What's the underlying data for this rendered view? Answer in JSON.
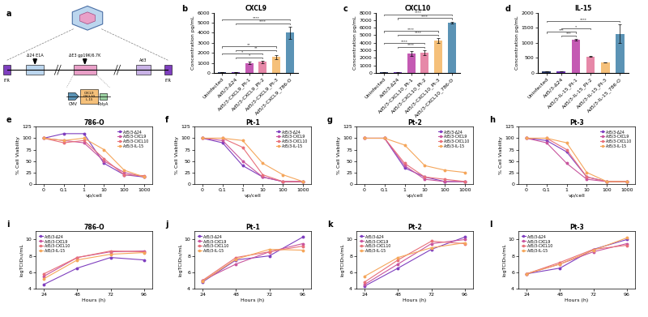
{
  "diagram": {
    "panel": "a",
    "labels": {
      "itr": "ITR",
      "e1a": "Δ24 E1A",
      "e3": "ΔE3 gp19K/6.7K",
      "fiber": "Ad3",
      "promoter": "CMV",
      "transgenes": [
        "CXCL9",
        "CXCL10",
        "IL-15"
      ],
      "polya": "PolyA"
    }
  },
  "chart_data": [
    {
      "panel": "b",
      "type": "bar",
      "title": "CXCL9",
      "y_label": "Concentration pg/mL",
      "categories": [
        "Uninfected",
        "Ad5/3-Δ24",
        "Ad5/3-CXCL9_Pt-1",
        "Ad5/3-CXCL9_Pt-2",
        "Ad5/3-CXCL9_Pt-3",
        "Ad5/3-CXCL9_786-O"
      ],
      "values": [
        50,
        50,
        1000,
        1100,
        1600,
        4000
      ],
      "errors": [
        10,
        10,
        100,
        100,
        200,
        600
      ],
      "colors": [
        "#2b3a67",
        "#6a2fb0",
        "#c45ab3",
        "#e688a8",
        "#f5c07a",
        "#5b93b5"
      ],
      "ylim": [
        0,
        6000
      ],
      "yticks": [
        0,
        1000,
        2000,
        3000,
        4000,
        5000,
        6000
      ],
      "annotations": [
        {
          "pair": [
            "Ad5/3-Δ24",
            "Ad5/3-CXCL9_Pt-2"
          ],
          "text": "*"
        },
        {
          "pair": [
            "Uninfected",
            "Ad5/3-CXCL9_Pt-2"
          ],
          "text": "*"
        },
        {
          "pair": [
            "Ad5/3-Δ24",
            "Ad5/3-CXCL9_Pt-3"
          ],
          "text": "**"
        },
        {
          "pair": [
            "Uninfected",
            "Ad5/3-CXCL9_Pt-3"
          ],
          "text": "**"
        },
        {
          "pair": [
            "Ad5/3-Δ24",
            "Ad5/3-CXCL9_786-O"
          ],
          "text": "****"
        },
        {
          "pair": [
            "Uninfected",
            "Ad5/3-CXCL9_786-O"
          ],
          "text": "****"
        }
      ]
    },
    {
      "panel": "c",
      "type": "bar",
      "title": "CXCL10",
      "y_label": "Concentration pg/mL",
      "categories": [
        "Uninfected",
        "Ad5/3-Δ24",
        "Ad5/3-CXCL10_Pt-1",
        "Ad5/3-CXCL10_Pt-2",
        "Ad5/3-CXCL10_Pt-3",
        "Ad5/3-CXCL10_786-O"
      ],
      "values": [
        50,
        50,
        2600,
        2700,
        4300,
        6700
      ],
      "errors": [
        20,
        20,
        300,
        300,
        300,
        100
      ],
      "colors": [
        "#2b3a67",
        "#6a2fb0",
        "#c45ab3",
        "#e688a8",
        "#f5c07a",
        "#5b93b5"
      ],
      "ylim": [
        0,
        8000
      ],
      "yticks": [
        0,
        1000,
        2000,
        3000,
        4000,
        5000,
        6000,
        7000,
        8000
      ],
      "annotations": [
        {
          "pair": [
            "Ad5/3-Δ24",
            "Ad5/3-CXCL10_Pt-2"
          ],
          "text": "****"
        },
        {
          "pair": [
            "Uninfected",
            "Ad5/3-CXCL10_Pt-2"
          ],
          "text": "****"
        },
        {
          "pair": [
            "Ad5/3-Δ24",
            "Ad5/3-CXCL10_Pt-3"
          ],
          "text": "****"
        },
        {
          "pair": [
            "Uninfected",
            "Ad5/3-CXCL10_Pt-3"
          ],
          "text": "****"
        },
        {
          "pair": [
            "Ad5/3-Δ24",
            "Ad5/3-CXCL10_786-O"
          ],
          "text": "****"
        },
        {
          "pair": [
            "Uninfected",
            "Ad5/3-CXCL10_786-O"
          ],
          "text": "****"
        }
      ]
    },
    {
      "panel": "d",
      "type": "bar",
      "title": "IL-15",
      "y_label": "Concentration pg/mL",
      "categories": [
        "Uninfected",
        "Ad5/3-Δ24",
        "Ad5/3-IL-15_Pt-1",
        "Ad5/3-IL-15_Pt-2",
        "Ad5/3-IL-15_Pt-3",
        "Ad5/3-IL-15_786-O"
      ],
      "values": [
        50,
        50,
        1100,
        550,
        350,
        1300
      ],
      "errors": [
        10,
        10,
        20,
        20,
        10,
        300
      ],
      "colors": [
        "#2b3a67",
        "#6a2fb0",
        "#c45ab3",
        "#e688a8",
        "#f5c07a",
        "#5b93b5"
      ],
      "ylim": [
        0,
        2000
      ],
      "yticks": [
        0,
        500,
        1000,
        1500,
        2000
      ],
      "annotations": [
        {
          "pair": [
            "Ad5/3-Δ24",
            "Ad5/3-IL-15_Pt-1"
          ],
          "text": "***"
        },
        {
          "pair": [
            "Uninfected",
            "Ad5/3-IL-15_Pt-1"
          ],
          "text": "***"
        },
        {
          "pair": [
            "Ad5/3-Δ24",
            "Ad5/3-IL-15_Pt-2"
          ],
          "text": "*"
        },
        {
          "pair": [
            "Uninfected",
            "Ad5/3-IL-15_786-O"
          ],
          "text": "****"
        }
      ]
    },
    {
      "panel": "e",
      "type": "line",
      "title": "786-O",
      "x_label": "vp/cell",
      "y_label": "% Cell Viability",
      "categories": [
        "0",
        "0,1",
        "1",
        "10",
        "100",
        "1000"
      ],
      "ylim": [
        0,
        125
      ],
      "yticks": [
        0,
        25,
        50,
        75,
        100,
        125
      ],
      "legend": "upper right",
      "series": [
        {
          "name": "Ad5/3-Δ24",
          "color": "#7f3fbf",
          "marker": "o",
          "values": [
            100,
            110,
            110,
            45,
            20,
            15
          ]
        },
        {
          "name": "Ad5/3-CXCL9",
          "color": "#c8559e",
          "marker": "o",
          "values": [
            100,
            95,
            90,
            50,
            25,
            15
          ]
        },
        {
          "name": "Ad5/3-CXCL10",
          "color": "#e8707a",
          "marker": "o",
          "values": [
            100,
            90,
            95,
            55,
            20,
            18
          ]
        },
        {
          "name": "Ad5/3-IL-15",
          "color": "#f5a65b",
          "marker": "o",
          "values": [
            100,
            95,
            100,
            75,
            30,
            15
          ]
        }
      ]
    },
    {
      "panel": "f",
      "type": "line",
      "title": "Pt-1",
      "x_label": "vp/cell",
      "y_label": "% Cell Viability",
      "categories": [
        "0",
        "0,1",
        "1",
        "10",
        "100",
        "1000"
      ],
      "ylim": [
        0,
        125
      ],
      "yticks": [
        0,
        25,
        50,
        75,
        100,
        125
      ],
      "legend": "upper right",
      "series": [
        {
          "name": "Ad5/3-Δ24",
          "color": "#7f3fbf",
          "marker": "o",
          "values": [
            100,
            90,
            40,
            15,
            5,
            5
          ]
        },
        {
          "name": "Ad5/3-CXCL9",
          "color": "#c8559e",
          "marker": "o",
          "values": [
            100,
            95,
            50,
            15,
            5,
            5
          ]
        },
        {
          "name": "Ad5/3-CXCL10",
          "color": "#e8707a",
          "marker": "o",
          "values": [
            100,
            100,
            80,
            20,
            5,
            5
          ]
        },
        {
          "name": "Ad5/3-IL-15",
          "color": "#f5a65b",
          "marker": "o",
          "values": [
            100,
            100,
            95,
            45,
            20,
            5
          ]
        }
      ]
    },
    {
      "panel": "g",
      "type": "line",
      "title": "Pt-2",
      "x_label": "vp/cell",
      "y_label": "% Cell Viability",
      "categories": [
        "0",
        "0,1",
        "1",
        "10",
        "100",
        "1000"
      ],
      "ylim": [
        0,
        125
      ],
      "yticks": [
        0,
        25,
        50,
        75,
        100,
        125
      ],
      "legend": "upper right",
      "series": [
        {
          "name": "Ad5/3-Δ24",
          "color": "#7f3fbf",
          "marker": "o",
          "values": [
            100,
            100,
            35,
            15,
            5,
            5
          ]
        },
        {
          "name": "Ad5/3-CXCL9",
          "color": "#c8559e",
          "marker": "o",
          "values": [
            100,
            100,
            40,
            10,
            5,
            5
          ]
        },
        {
          "name": "Ad5/3-CXCL10",
          "color": "#e8707a",
          "marker": "o",
          "values": [
            100,
            100,
            45,
            15,
            10,
            5
          ]
        },
        {
          "name": "Ad5/3-IL-15",
          "color": "#f5a65b",
          "marker": "o",
          "values": [
            100,
            100,
            85,
            40,
            30,
            25
          ]
        }
      ]
    },
    {
      "panel": "h",
      "type": "line",
      "title": "Pt-3",
      "x_label": "vp/cell",
      "y_label": "% Cell Viability",
      "categories": [
        "0",
        "0,1",
        "1",
        "10",
        "100",
        "1000"
      ],
      "ylim": [
        0,
        125
      ],
      "yticks": [
        0,
        25,
        50,
        75,
        100,
        125
      ],
      "legend": "upper right",
      "series": [
        {
          "name": "Ad5/3-Δ24",
          "color": "#7f3fbf",
          "marker": "o",
          "values": [
            100,
            95,
            70,
            15,
            5,
            5
          ]
        },
        {
          "name": "Ad5/3-CXCL9",
          "color": "#c8559e",
          "marker": "o",
          "values": [
            100,
            90,
            45,
            10,
            5,
            5
          ]
        },
        {
          "name": "Ad5/3-CXCL10",
          "color": "#e8707a",
          "marker": "o",
          "values": [
            100,
            100,
            75,
            15,
            5,
            5
          ]
        },
        {
          "name": "Ad5/3-IL-15",
          "color": "#f5a65b",
          "marker": "o",
          "values": [
            100,
            100,
            90,
            25,
            5,
            5
          ]
        }
      ]
    },
    {
      "panel": "i",
      "type": "line",
      "title": "786-O",
      "x_label": "Hours (h)",
      "y_label": "logTCID₅₀/mL",
      "x": [
        24,
        48,
        72,
        96
      ],
      "xlim": [
        18,
        102
      ],
      "xticks": [
        24,
        48,
        72,
        96
      ],
      "ylim": [
        4,
        11
      ],
      "yticks": [
        4,
        6,
        8,
        10
      ],
      "legend": "upper left",
      "series": [
        {
          "name": "Ad5/3-Δ24",
          "color": "#7f3fbf",
          "marker": "o",
          "values": [
            4.5,
            6.5,
            7.8,
            7.5
          ]
        },
        {
          "name": "Ad5/3-CXCL9",
          "color": "#c8559e",
          "marker": "o",
          "values": [
            5.5,
            7.8,
            8.5,
            8.6
          ]
        },
        {
          "name": "Ad5/3-CXCL10",
          "color": "#e8707a",
          "marker": "o",
          "values": [
            5.8,
            7.8,
            8.6,
            8.5
          ]
        },
        {
          "name": "Ad5/3-IL-15",
          "color": "#f5a65b",
          "marker": "o",
          "values": [
            5.2,
            7.5,
            8.2,
            8.4
          ]
        }
      ]
    },
    {
      "panel": "j",
      "type": "line",
      "title": "Pt-1",
      "x_label": "Hours (h)",
      "y_label": "logTCID₅₀/mL",
      "x": [
        24,
        48,
        72,
        96
      ],
      "xlim": [
        18,
        102
      ],
      "xticks": [
        24,
        48,
        72,
        96
      ],
      "ylim": [
        4,
        11
      ],
      "yticks": [
        4,
        6,
        8,
        10
      ],
      "legend": "upper left",
      "series": [
        {
          "name": "Ad5/3-Δ24",
          "color": "#7f3fbf",
          "marker": "o",
          "values": [
            4.8,
            7.5,
            8.0,
            10.3
          ]
        },
        {
          "name": "Ad5/3-CXCL9",
          "color": "#c8559e",
          "marker": "o",
          "values": [
            5.0,
            7.0,
            8.5,
            9.5
          ]
        },
        {
          "name": "Ad5/3-CXCL10",
          "color": "#e8707a",
          "marker": "o",
          "values": [
            5.0,
            7.8,
            8.5,
            9.2
          ]
        },
        {
          "name": "Ad5/3-IL-15",
          "color": "#f5a65b",
          "marker": "o",
          "values": [
            4.9,
            7.6,
            8.8,
            8.7
          ]
        }
      ]
    },
    {
      "panel": "k",
      "type": "line",
      "title": "Pt-2",
      "x_label": "Hours (h)",
      "y_label": "logTCID₅₀/mL",
      "x": [
        24,
        48,
        72,
        96
      ],
      "xlim": [
        18,
        102
      ],
      "xticks": [
        24,
        48,
        72,
        96
      ],
      "ylim": [
        4,
        11
      ],
      "yticks": [
        4,
        6,
        8,
        10
      ],
      "legend": "upper left",
      "series": [
        {
          "name": "Ad5/3-Δ24",
          "color": "#7f3fbf",
          "marker": "o",
          "values": [
            4.3,
            6.5,
            8.8,
            10.3
          ]
        },
        {
          "name": "Ad5/3-CXCL9",
          "color": "#c8559e",
          "marker": "o",
          "values": [
            4.5,
            7.0,
            9.5,
            10.0
          ]
        },
        {
          "name": "Ad5/3-CXCL10",
          "color": "#e8707a",
          "marker": "o",
          "values": [
            4.8,
            7.5,
            9.8,
            9.5
          ]
        },
        {
          "name": "Ad5/3-IL-15",
          "color": "#f5a65b",
          "marker": "o",
          "values": [
            5.5,
            7.8,
            9.0,
            9.6
          ]
        }
      ]
    },
    {
      "panel": "l",
      "type": "line",
      "title": "Pt-3",
      "x_label": "Hours (h)",
      "y_label": "logTCID₅₀/mL",
      "x": [
        24,
        48,
        72,
        96
      ],
      "xlim": [
        18,
        102
      ],
      "xticks": [
        24,
        48,
        72,
        96
      ],
      "ylim": [
        4,
        11
      ],
      "yticks": [
        4,
        6,
        8,
        10
      ],
      "legend": "upper left",
      "series": [
        {
          "name": "Ad5/3-Δ24",
          "color": "#7f3fbf",
          "marker": "o",
          "values": [
            5.8,
            6.5,
            8.8,
            10.0
          ]
        },
        {
          "name": "Ad5/3-CXCL9",
          "color": "#c8559e",
          "marker": "o",
          "values": [
            5.8,
            7.0,
            8.5,
            9.5
          ]
        },
        {
          "name": "Ad5/3-CXCL10",
          "color": "#e8707a",
          "marker": "o",
          "values": [
            5.8,
            7.2,
            8.8,
            9.3
          ]
        },
        {
          "name": "Ad5/3-IL-15",
          "color": "#f5a65b",
          "marker": "o",
          "values": [
            5.8,
            7.0,
            8.7,
            10.2
          ]
        }
      ]
    }
  ]
}
